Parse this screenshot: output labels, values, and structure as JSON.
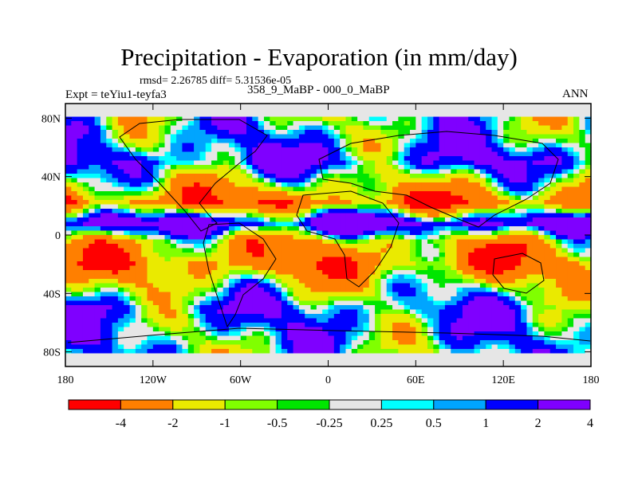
{
  "header": {
    "title": "Precipitation - Evaporation (in mm/day)",
    "stats": "rmsd= 2.26785 diff= 5.31536e-05",
    "expt": "Expt = teYiu1-teyfa3",
    "case": "358_9_MaBP - 000_0_MaBP",
    "season": "ANN"
  },
  "chart_data": {
    "type": "heatmap",
    "title": "Precipitation - Evaporation (in mm/day)",
    "xlabel": "",
    "ylabel": "",
    "xlim": [
      -180,
      180
    ],
    "ylim": [
      -90,
      90
    ],
    "x_ticks": [
      {
        "value": -180,
        "label": "180"
      },
      {
        "value": -120,
        "label": "120W"
      },
      {
        "value": -60,
        "label": "60W"
      },
      {
        "value": 0,
        "label": "0"
      },
      {
        "value": 60,
        "label": "60E"
      },
      {
        "value": 120,
        "label": "120E"
      },
      {
        "value": 180,
        "label": "180"
      }
    ],
    "y_ticks": [
      {
        "value": 80,
        "label": "80N"
      },
      {
        "value": 40,
        "label": "40N"
      },
      {
        "value": 0,
        "label": "0"
      },
      {
        "value": -40,
        "label": "40S"
      },
      {
        "value": -80,
        "label": "80S"
      }
    ],
    "colorbar": {
      "colors": [
        "#ff0000",
        "#ff7f00",
        "#eaea00",
        "#80ff00",
        "#00e600",
        "#e6e6e6",
        "#00ffff",
        "#00a5ff",
        "#0000ff",
        "#7f00ff"
      ],
      "labels": [
        "-4",
        "-2",
        "-1",
        "-0.5",
        "-0.25",
        "0.25",
        "0.5",
        "1",
        "2",
        "4"
      ]
    },
    "zonal_pattern": [
      {
        "lat": 85,
        "value": 0.0
      },
      {
        "lat": 65,
        "value": 0.6
      },
      {
        "lat": 50,
        "value": 1.5
      },
      {
        "lat": 35,
        "value": -1.2
      },
      {
        "lat": 22,
        "value": -3.5
      },
      {
        "lat": 8,
        "value": 3.0
      },
      {
        "lat": -5,
        "value": -2.0
      },
      {
        "lat": -20,
        "value": -3.0
      },
      {
        "lat": -35,
        "value": -0.7
      },
      {
        "lat": -50,
        "value": 1.0
      },
      {
        "lat": -70,
        "value": 0.5
      },
      {
        "lat": -85,
        "value": 0.0
      }
    ]
  }
}
